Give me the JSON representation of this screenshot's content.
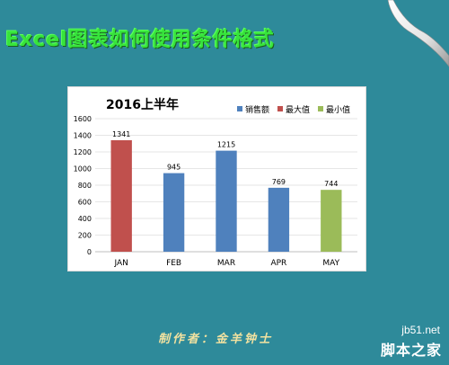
{
  "slide": {
    "title": "Excel图表如何使用条件格式",
    "author": "制作者：金羊钟士",
    "watermark_site": "jb51.net",
    "watermark_name": "脚本之家"
  },
  "colors": {
    "background": "#2e8a9a",
    "title": "#37e43c",
    "sales": "#4f81bd",
    "max": "#c0504d",
    "min": "#9bbb59"
  },
  "chart_data": {
    "type": "bar",
    "title": "2016上半年",
    "categories": [
      "JAN",
      "FEB",
      "MAR",
      "APR",
      "MAY"
    ],
    "values": [
      1341,
      945,
      1215,
      769,
      744
    ],
    "highlight": [
      "max",
      "sales",
      "sales",
      "sales",
      "min"
    ],
    "legend": [
      {
        "key": "sales",
        "label": "销售额"
      },
      {
        "key": "max",
        "label": "最大值"
      },
      {
        "key": "min",
        "label": "最小值"
      }
    ],
    "legend_position": "top-right",
    "ylim": [
      0,
      1600
    ],
    "yticks": [
      "0",
      "200",
      "400",
      "600",
      "800",
      "1000",
      "1200",
      "1400",
      "1600"
    ],
    "grid": true,
    "xlabel": "",
    "ylabel": ""
  }
}
